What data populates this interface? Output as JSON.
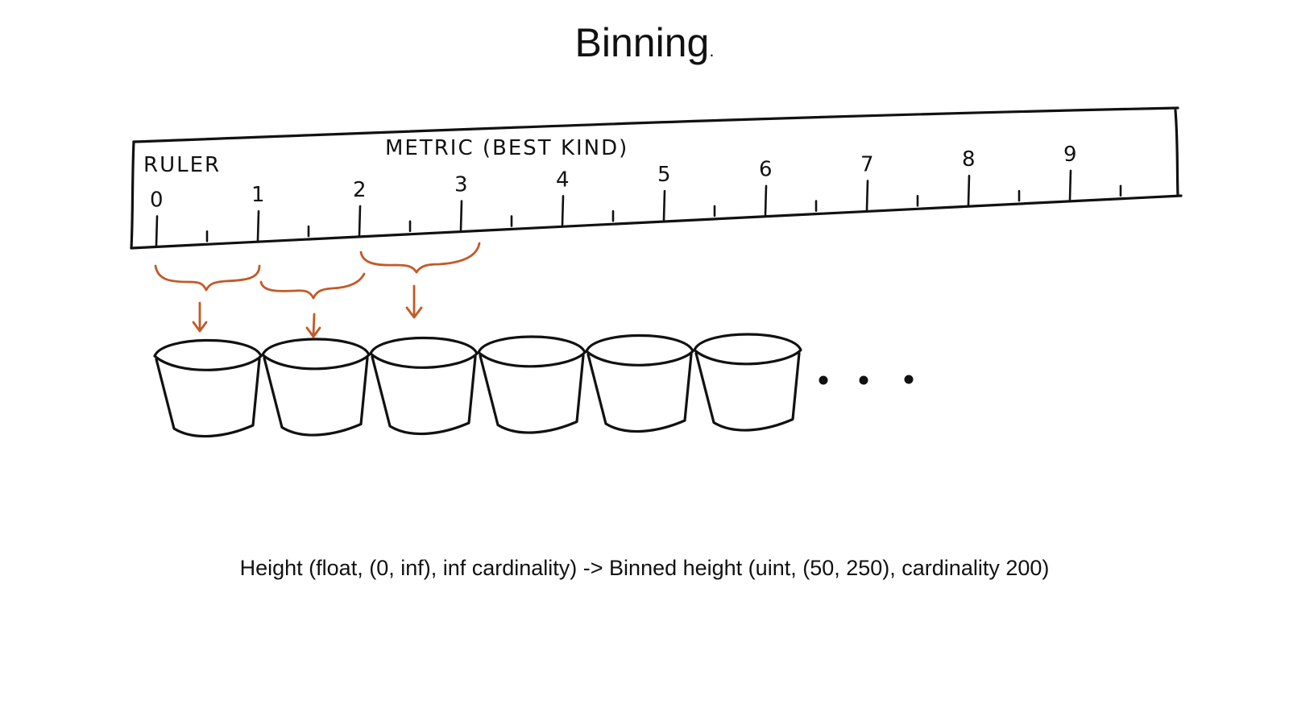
{
  "title": {
    "text": "Binning",
    "trailing_dot": "."
  },
  "ruler": {
    "left_label": "RULER",
    "center_label": "METRIC (BEST KIND)",
    "tick_labels": [
      "0",
      "1",
      "2",
      "3",
      "4",
      "5",
      "6",
      "7",
      "8",
      "9"
    ]
  },
  "buckets": {
    "count_drawn": 6,
    "ellipsis": "• • •"
  },
  "caption": "Height (float, (0, inf), inf cardinality) -> Binned height (uint, (50, 250), cardinality 200)",
  "colors": {
    "ink": "#111111",
    "accent": "#c25a27",
    "background": "#ffffff"
  }
}
